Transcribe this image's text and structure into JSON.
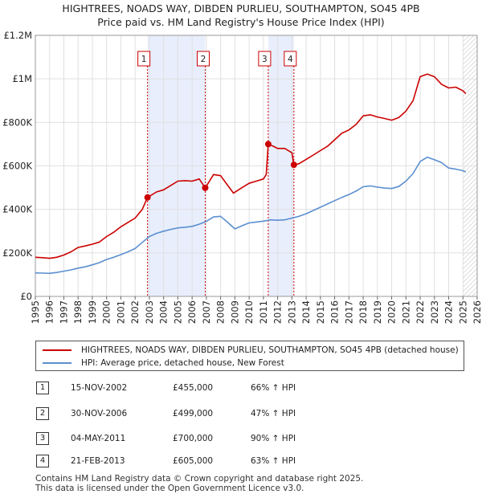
{
  "title_line1": "HIGHTREES, NOADS WAY, DIBDEN PURLIEU, SOUTHAMPTON, SO45 4PB",
  "title_line2": "Price paid vs. HM Land Registry's House Price Index (HPI)",
  "colors": {
    "property": "#cc0000",
    "hpi": "#5b8fd0",
    "shade": "#e8eefc"
  },
  "chart_data": {
    "type": "line",
    "xlim": [
      1995,
      2026
    ],
    "ylim": [
      0,
      1200000
    ],
    "yticks": [
      {
        "v": 0,
        "label": "£0"
      },
      {
        "v": 200000,
        "label": "£200K"
      },
      {
        "v": 400000,
        "label": "£400K"
      },
      {
        "v": 600000,
        "label": "£600K"
      },
      {
        "v": 800000,
        "label": "£800K"
      },
      {
        "v": 1000000,
        "label": "£1M"
      },
      {
        "v": 1200000,
        "label": "£1.2M"
      }
    ],
    "xticks": [
      "1995",
      "1996",
      "1997",
      "1998",
      "1999",
      "2000",
      "2001",
      "2002",
      "2003",
      "2004",
      "2005",
      "2006",
      "2007",
      "2008",
      "2009",
      "2010",
      "2011",
      "2012",
      "2013",
      "2014",
      "2015",
      "2016",
      "2017",
      "2018",
      "2019",
      "2020",
      "2021",
      "2022",
      "2023",
      "2024",
      "2025",
      "2026"
    ],
    "shaded_ranges": [
      [
        2002.87,
        2006.92
      ],
      [
        2011.34,
        2013.14
      ]
    ],
    "future_hatch_start": 2025.0,
    "series": [
      {
        "name": "HIGHTREES, NOADS WAY, DIBDEN PURLIEU, SOUTHAMPTON, SO45 4PB (detached house)",
        "color": "#cc0000",
        "x": [
          1995.0,
          1995.5,
          1996.0,
          1996.5,
          1997.0,
          1997.5,
          1998.0,
          1998.5,
          1999.0,
          1999.5,
          2000.0,
          2000.5,
          2001.0,
          2001.5,
          2002.0,
          2002.5,
          2002.87,
          2003.5,
          2004.0,
          2004.5,
          2005.0,
          2005.5,
          2006.0,
          2006.5,
          2006.92,
          2007.5,
          2008.0,
          2008.5,
          2008.9,
          2009.5,
          2010.0,
          2010.5,
          2011.0,
          2011.2,
          2011.34,
          2011.7,
          2012.0,
          2012.5,
          2013.0,
          2013.14,
          2013.5,
          2014.0,
          2014.5,
          2015.0,
          2015.5,
          2016.0,
          2016.5,
          2017.0,
          2017.5,
          2018.0,
          2018.5,
          2019.0,
          2019.5,
          2020.0,
          2020.5,
          2021.0,
          2021.5,
          2022.0,
          2022.5,
          2023.0,
          2023.5,
          2024.0,
          2024.5,
          2025.0,
          2025.2
        ],
        "y": [
          180000,
          178000,
          175000,
          180000,
          190000,
          205000,
          225000,
          232000,
          240000,
          250000,
          275000,
          295000,
          320000,
          340000,
          360000,
          400000,
          455000,
          480000,
          490000,
          510000,
          530000,
          532000,
          530000,
          540000,
          499000,
          560000,
          555000,
          510000,
          475000,
          500000,
          520000,
          530000,
          540000,
          560000,
          700000,
          690000,
          680000,
          680000,
          660000,
          605000,
          610000,
          630000,
          650000,
          670000,
          690000,
          720000,
          750000,
          765000,
          790000,
          830000,
          835000,
          825000,
          818000,
          810000,
          822000,
          852000,
          900000,
          1010000,
          1022000,
          1010000,
          975000,
          958000,
          962000,
          945000,
          932000
        ]
      },
      {
        "name": "HPI: Average price, detached house, New Forest",
        "color": "#5b8fd0",
        "x": [
          1995.0,
          1995.5,
          1996.0,
          1996.5,
          1997.0,
          1997.5,
          1998.0,
          1998.5,
          1999.0,
          1999.5,
          2000.0,
          2000.5,
          2001.0,
          2001.5,
          2002.0,
          2002.5,
          2003.0,
          2003.5,
          2004.0,
          2004.5,
          2005.0,
          2005.5,
          2006.0,
          2006.5,
          2007.0,
          2007.5,
          2008.0,
          2008.5,
          2009.0,
          2009.5,
          2010.0,
          2010.5,
          2011.0,
          2011.5,
          2012.0,
          2012.5,
          2013.0,
          2013.5,
          2014.0,
          2014.5,
          2015.0,
          2015.5,
          2016.0,
          2016.5,
          2017.0,
          2017.5,
          2018.0,
          2018.5,
          2019.0,
          2019.5,
          2020.0,
          2020.5,
          2021.0,
          2021.5,
          2022.0,
          2022.5,
          2023.0,
          2023.5,
          2024.0,
          2024.5,
          2025.0,
          2025.2
        ],
        "y": [
          108000,
          107000,
          106000,
          110000,
          116000,
          122000,
          130000,
          136000,
          145000,
          155000,
          170000,
          180000,
          192000,
          205000,
          220000,
          248000,
          275000,
          290000,
          300000,
          308000,
          315000,
          318000,
          322000,
          332000,
          345000,
          365000,
          368000,
          340000,
          310000,
          325000,
          338000,
          342000,
          346000,
          352000,
          350000,
          352000,
          360000,
          368000,
          380000,
          395000,
          410000,
          425000,
          440000,
          455000,
          468000,
          484000,
          504000,
          508000,
          502000,
          498000,
          496000,
          505000,
          530000,
          565000,
          620000,
          640000,
          628000,
          615000,
          590000,
          585000,
          578000,
          572000
        ]
      }
    ],
    "sales": [
      {
        "num": "1",
        "x": 2002.87,
        "y": 455000
      },
      {
        "num": "2",
        "x": 2006.92,
        "y": 499000
      },
      {
        "num": "3",
        "x": 2011.34,
        "y": 700000
      },
      {
        "num": "4",
        "x": 2013.14,
        "y": 605000
      }
    ]
  },
  "legend": {
    "property_label": "HIGHTREES, NOADS WAY, DIBDEN PURLIEU, SOUTHAMPTON, SO45 4PB (detached house)",
    "hpi_label": "HPI: Average price, detached house, New Forest"
  },
  "transactions": [
    {
      "num": "1",
      "date": "15-NOV-2002",
      "price": "£455,000",
      "hpi": "66% ↑ HPI"
    },
    {
      "num": "2",
      "date": "30-NOV-2006",
      "price": "£499,000",
      "hpi": "47% ↑ HPI"
    },
    {
      "num": "3",
      "date": "04-MAY-2011",
      "price": "£700,000",
      "hpi": "90% ↑ HPI"
    },
    {
      "num": "4",
      "date": "21-FEB-2013",
      "price": "£605,000",
      "hpi": "63% ↑ HPI"
    }
  ],
  "footer_line1": "Contains HM Land Registry data © Crown copyright and database right 2025.",
  "footer_line2": "This data is licensed under the Open Government Licence v3.0."
}
